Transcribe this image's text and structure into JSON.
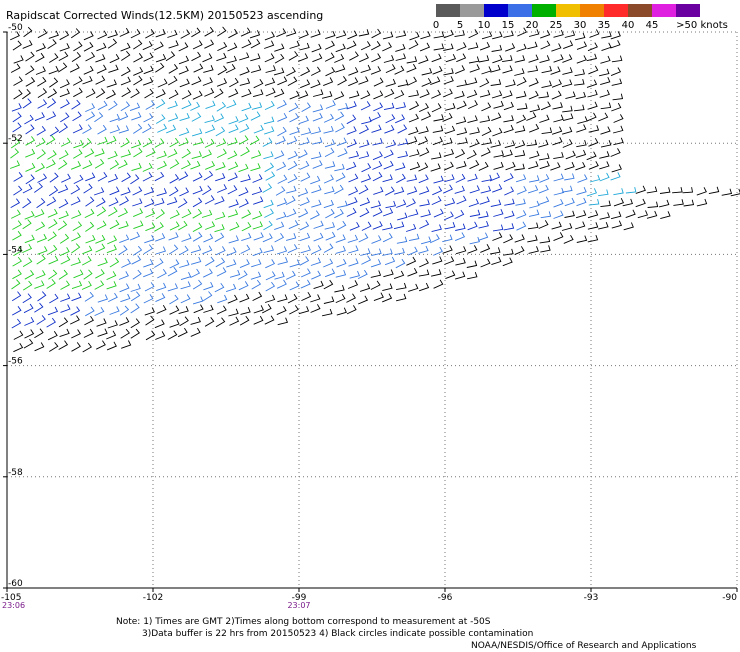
{
  "title": "Rapidscat Corrected Winds(12.5KM) 20150523 ascending",
  "legend": {
    "labels": [
      "0",
      "5",
      "10",
      "15",
      "20",
      "25",
      "30",
      "35",
      "40",
      "45",
      ">50 knots"
    ],
    "colors": [
      "#5a5a5a",
      "#9a9a9a",
      "#0000cc",
      "#3a6fe8",
      "#00b000",
      "#f0c000",
      "#f08000",
      "#ff2a2a",
      "#8b4a2a",
      "#e020e0",
      "#6a00a0"
    ]
  },
  "notes": [
    "Note: 1) Times are GMT 2)Times along bottom correspond to measurement at -50S",
    "3)Data buffer is 22 hrs from 20150523 4) Black circles indicate possible contamination",
    "NOAA/NESDIS/Office of Research and Applications"
  ],
  "chart_data": {
    "type": "wind barb map",
    "title": "Rapidscat Corrected Winds(12.5KM) 20150523 ascending",
    "x_ticks": [
      "-105",
      "-102",
      "-99",
      "-96",
      "-93",
      "-90"
    ],
    "y_ticks": [
      "-50",
      "-52",
      "-54",
      "-56",
      "-58",
      "-60"
    ],
    "xlim": [
      -105,
      -90
    ],
    "ylim": [
      -60,
      -50
    ],
    "time_labels": [
      {
        "lon": -105,
        "label": "23:06"
      },
      {
        "lon": -99,
        "label": "23:07"
      }
    ],
    "wind_color_scale_knots": [
      0,
      5,
      10,
      15,
      20,
      25,
      30,
      35,
      40,
      45,
      50
    ],
    "grid": "dotted",
    "barbs": "dense field of wind barbs covering the swath between about -50 and -56 latitude"
  }
}
